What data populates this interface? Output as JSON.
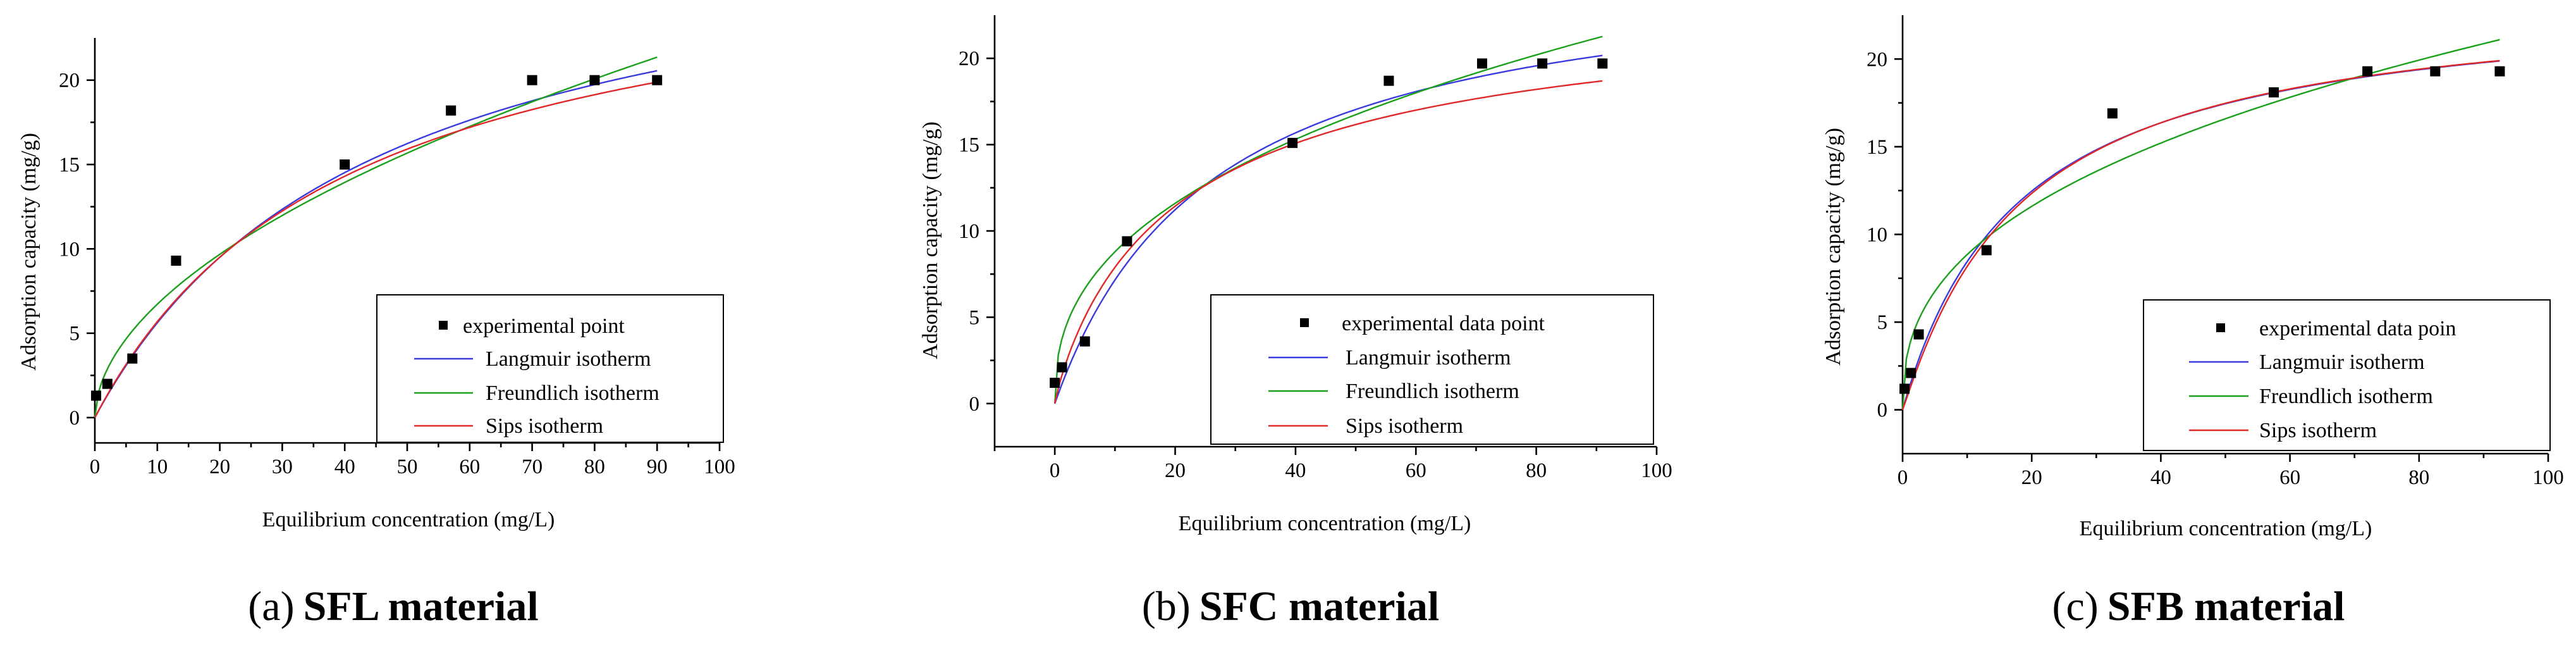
{
  "chart_data": [
    {
      "id": "a",
      "type": "scatter",
      "caption": {
        "label": "(a)",
        "text": "SFL material"
      },
      "xlabel": "Equilibrium concentration (mg/L)",
      "ylabel": "Adsorption capacity (mg/g)",
      "xlim": [
        0,
        100
      ],
      "ylim": [
        -1.5,
        22.5
      ],
      "xticks": [
        0,
        10,
        20,
        30,
        40,
        50,
        60,
        70,
        80,
        90,
        100
      ],
      "yticks": [
        0,
        5,
        10,
        15,
        20
      ],
      "points": {
        "x": [
          0.2,
          2,
          6,
          13,
          40,
          57,
          70,
          80,
          90
        ],
        "y": [
          1.3,
          2,
          3.5,
          9.3,
          15,
          18.2,
          20,
          20,
          20
        ]
      },
      "fit_xmax": 90,
      "series": [
        {
          "name": "experimental point",
          "kind": "points",
          "color": "#000000"
        },
        {
          "name": "Langmuir isotherm",
          "kind": "langmuir",
          "color": "#3a3ae0",
          "params": {
            "qm": 30.8,
            "K": 0.0223
          }
        },
        {
          "name": "Freundlich isotherm",
          "kind": "freundlich",
          "color": "#1aa01a",
          "params": {
            "Kf": 2.0,
            "n": 1.9
          }
        },
        {
          "name": "Sips isotherm",
          "kind": "sips",
          "color": "#e02828",
          "params": {
            "qm": 28.9,
            "K": 0.0245,
            "n": 1.0
          }
        }
      ]
    },
    {
      "id": "b",
      "type": "scatter",
      "caption": {
        "label": "(b)",
        "text": "SFC material"
      },
      "xlabel": "Equilibrium concentration (mg/L)",
      "ylabel": "Adsorption capacity (mg/g)",
      "xlim": [
        -10,
        100
      ],
      "ylim": [
        -2.5,
        22.5
      ],
      "xticks": [
        0,
        20,
        40,
        60,
        80,
        100
      ],
      "yticks": [
        0,
        5,
        10,
        15,
        20
      ],
      "points": {
        "x": [
          0,
          1.2,
          5,
          12,
          39.5,
          55.5,
          71,
          81,
          91
        ],
        "y": [
          1.2,
          2.1,
          3.6,
          9.4,
          15.1,
          18.7,
          19.7,
          19.7,
          19.7
        ]
      },
      "fit_xmax": 91,
      "series": [
        {
          "name": "experimental data point",
          "kind": "points",
          "color": "#000000"
        },
        {
          "name": "Langmuir isotherm",
          "kind": "langmuir",
          "color": "#3a3ae0",
          "params": {
            "qm": 26.0,
            "K": 0.038
          }
        },
        {
          "name": "Freundlich isotherm",
          "kind": "freundlich",
          "color": "#1aa01a",
          "params": {
            "Kf": 3.5,
            "n": 2.5
          }
        },
        {
          "name": "Sips isotherm",
          "kind": "sips",
          "color": "#e02828",
          "params": {
            "qm": 24.0,
            "K": 0.045,
            "n": 1.12
          }
        }
      ]
    },
    {
      "id": "c",
      "type": "scatter",
      "caption": {
        "label": "(c)",
        "text": "SFB material"
      },
      "xlabel": "Equilibrium concentration (mg/L)",
      "ylabel": "Adsorption capacity (mg/g)",
      "xlim": [
        0,
        100
      ],
      "ylim": [
        -2.5,
        22.5
      ],
      "xticks": [
        0,
        20,
        40,
        60,
        80,
        100
      ],
      "yticks": [
        0,
        5,
        10,
        15,
        20
      ],
      "points": {
        "x": [
          0.3,
          1.3,
          2.5,
          13,
          32.5,
          57.5,
          72,
          82.5,
          92.5
        ],
        "y": [
          1.2,
          2.1,
          4.3,
          9.1,
          16.9,
          18.1,
          19.3,
          19.3,
          19.3
        ]
      },
      "fit_xmax": 92.5,
      "series": [
        {
          "name": "experimental data poin",
          "kind": "points",
          "color": "#000000"
        },
        {
          "name": "Langmuir isotherm",
          "kind": "langmuir",
          "color": "#3a3ae0",
          "params": {
            "qm": 23.8,
            "K": 0.055
          }
        },
        {
          "name": "Freundlich isotherm",
          "kind": "freundlich",
          "color": "#1aa01a",
          "params": {
            "Kf": 3.6,
            "n": 2.56
          }
        },
        {
          "name": "Sips isotherm",
          "kind": "sips",
          "color": "#e02828",
          "params": {
            "qm": 23.5,
            "K": 0.055,
            "n": 0.95
          }
        }
      ]
    }
  ]
}
